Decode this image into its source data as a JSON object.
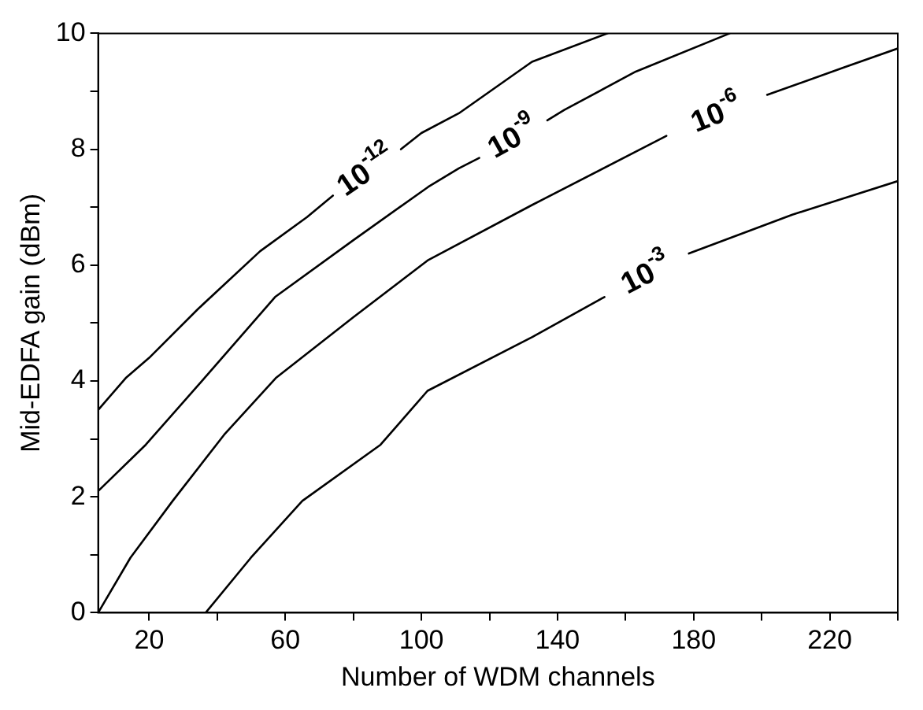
{
  "chart_data": {
    "type": "line",
    "xlabel": "Number of WDM channels",
    "ylabel": "Mid-EDFA gain (dBm)",
    "xlim": [
      5,
      240
    ],
    "ylim": [
      0,
      10
    ],
    "xticks": [
      20,
      {
        "value": 40,
        "label": null
      },
      60,
      {
        "value": 80,
        "label": null
      },
      100,
      {
        "value": 120,
        "label": null
      },
      140,
      {
        "value": 160,
        "label": null
      },
      180,
      {
        "value": 200,
        "label": null
      },
      220,
      {
        "value": 240,
        "label": null
      }
    ],
    "yticks": [
      0,
      {
        "value": 1,
        "label": null
      },
      2,
      {
        "value": 3,
        "label": null
      },
      4,
      {
        "value": 5,
        "label": null
      },
      6,
      {
        "value": 7,
        "label": null
      },
      8,
      {
        "value": 9,
        "label": null
      },
      10
    ],
    "grid": false,
    "legend": false,
    "marker": "none",
    "line_style": "solid",
    "series": [
      {
        "name": "10$^{-12}$",
        "color": "#000000",
        "x": [
          5,
          13.1,
          20,
          34.3,
          52.6,
          66.4,
          74,
          84,
          94,
          100,
          111,
          132.5,
          154.7
        ],
        "values": [
          3.5,
          4.05,
          4.4,
          5.24,
          6.24,
          6.83,
          7.2,
          null,
          8.0,
          8.28,
          8.62,
          9.51,
          10
        ]
      },
      {
        "name": "10$^{-9}$",
        "color": "#000000",
        "x": [
          5,
          19,
          34.3,
          57,
          80,
          102,
          111,
          117,
          127,
          137,
          142,
          163,
          190.6
        ],
        "values": [
          2.1,
          2.9,
          3.92,
          5.45,
          6.43,
          7.35,
          7.67,
          7.85,
          null,
          8.5,
          8.68,
          9.34,
          10
        ]
      },
      {
        "name": "10$^{-6}$",
        "color": "#000000",
        "x": [
          5,
          14.5,
          26.9,
          42,
          57.2,
          80,
          101.8,
          132.6,
          172,
          188,
          201.6,
          224.6,
          240
        ],
        "values": [
          0,
          0.95,
          1.93,
          3.07,
          4.05,
          5.1,
          6.08,
          7.04,
          8.23,
          null,
          8.94,
          9.42,
          9.74
        ]
      },
      {
        "name": "10$^{-3}$",
        "color": "#000000",
        "x": [
          36.6,
          49.9,
          65,
          88,
          101.8,
          132.6,
          153.8,
          166,
          178.6,
          209,
          240
        ],
        "values": [
          0,
          0.95,
          1.93,
          2.9,
          3.83,
          4.76,
          5.45,
          null,
          6.2,
          6.87,
          7.45
        ]
      }
    ]
  }
}
